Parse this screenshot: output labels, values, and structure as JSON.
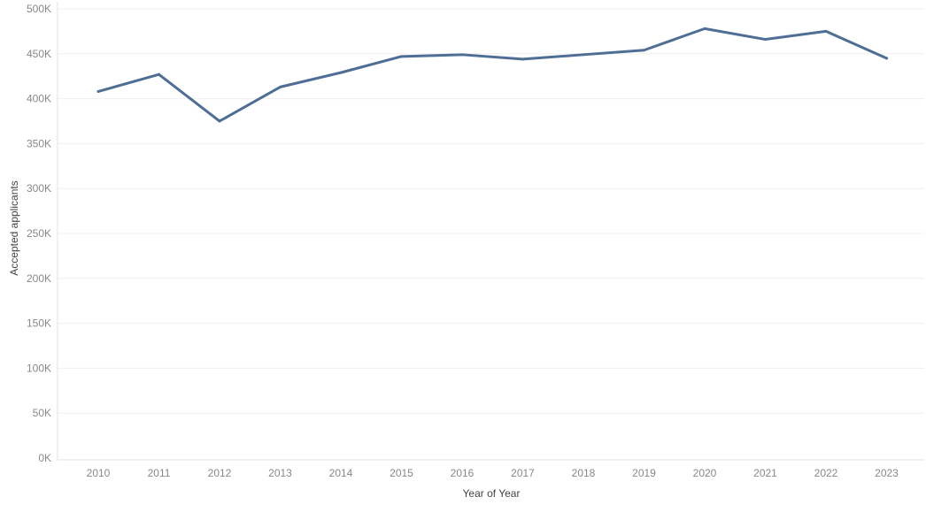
{
  "chart_data": {
    "type": "line",
    "title": "",
    "xlabel": "Year of Year",
    "ylabel": "Accepted applicants",
    "categories": [
      "2010",
      "2011",
      "2012",
      "2013",
      "2014",
      "2015",
      "2016",
      "2017",
      "2018",
      "2019",
      "2020",
      "2021",
      "2022",
      "2023"
    ],
    "series": [
      {
        "values": [
          408000,
          427000,
          375000,
          413000,
          429000,
          447000,
          449000,
          444000,
          449000,
          454000,
          478000,
          466000,
          475000,
          445000
        ],
        "color": "#4e6e96"
      }
    ],
    "ylim": [
      0,
      500000
    ],
    "yticks": [
      0,
      50000,
      100000,
      150000,
      200000,
      250000,
      300000,
      350000,
      400000,
      450000,
      500000
    ],
    "ytick_labels": [
      "0K",
      "50K",
      "100K",
      "150K",
      "200K",
      "250K",
      "300K",
      "350K",
      "400K",
      "450K",
      "500K"
    ],
    "grid": true,
    "legend": "none"
  }
}
